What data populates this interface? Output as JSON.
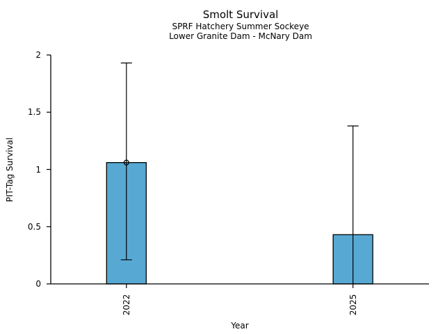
{
  "chart_data": {
    "type": "bar",
    "title": "Smolt Survival",
    "subtitle1": "SPRF Hatchery Summer Sockeye",
    "subtitle2": "Lower Granite Dam - McNary Dam",
    "xlabel": "Year",
    "ylabel": "PIT-Tag Survival",
    "categories": [
      "2022",
      "2025"
    ],
    "values": [
      1.06,
      0.43
    ],
    "error_bars": [
      {
        "low": 0.21,
        "high": 1.93,
        "low_cap": true,
        "high_cap": true
      },
      {
        "low": 0.0,
        "high": 1.38,
        "low_cap": false,
        "high_cap": true
      }
    ],
    "markers": [
      {
        "category_index": 0,
        "value": 1.06,
        "shape": "open-circle"
      }
    ],
    "ylim": [
      0,
      2
    ],
    "yticks": [
      0,
      0.5,
      1,
      1.5,
      2
    ],
    "ytick_labels": [
      "0",
      "0.5",
      "1",
      "1.5",
      "2"
    ],
    "grid": false,
    "legend_position": "none",
    "background_color": "#ffffff",
    "bar_color": "#57A9D4",
    "bar_edge_color": "#000000",
    "axis_color": "#000000",
    "text_color": "#000000"
  }
}
